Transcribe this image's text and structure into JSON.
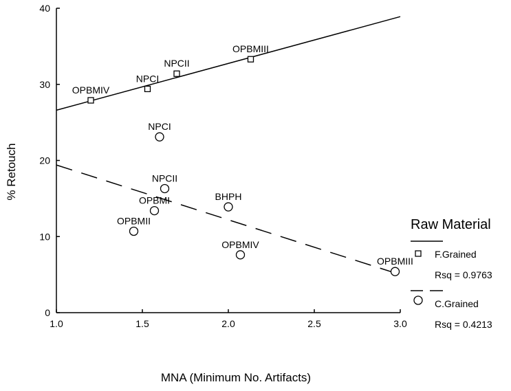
{
  "chart_data": {
    "type": "scatter",
    "xlabel": "MNA (Minimum No. Artifacts)",
    "ylabel": "% Retouch",
    "xlim": [
      1.0,
      3.0
    ],
    "ylim": [
      0,
      40
    ],
    "x_ticks": [
      1.0,
      1.5,
      2.0,
      2.5,
      3.0
    ],
    "x_tick_labels": [
      "1.0",
      "1.5",
      "2.0",
      "2.5",
      "3.0"
    ],
    "y_ticks": [
      0,
      10,
      20,
      30,
      40
    ],
    "y_tick_labels": [
      "0",
      "10",
      "20",
      "30",
      "40"
    ],
    "grid": false,
    "legend_title": "Raw Material",
    "legend_position": "right",
    "series": [
      {
        "name": "F.Grained",
        "marker": "square",
        "rsq_label": "Rsq = 0.9763",
        "fit_line": "solid",
        "fit": {
          "x": [
            1.0,
            3.0
          ],
          "y": [
            26.6,
            38.9
          ]
        },
        "points": [
          {
            "label": "OPBMIV",
            "x": 1.2,
            "y": 27.9
          },
          {
            "label": "NPCI",
            "x": 1.53,
            "y": 29.4
          },
          {
            "label": "NPCII",
            "x": 1.7,
            "y": 31.4
          },
          {
            "label": "OPBMIII",
            "x": 2.13,
            "y": 33.3
          }
        ]
      },
      {
        "name": "C.Grained",
        "marker": "circle",
        "rsq_label": "Rsq = 0.4213",
        "fit_line": "dashed",
        "fit": {
          "x": [
            1.0,
            3.0
          ],
          "y": [
            19.4,
            5.0
          ]
        },
        "points": [
          {
            "label": "NPCI",
            "x": 1.6,
            "y": 23.1
          },
          {
            "label": "NPCII",
            "x": 1.63,
            "y": 16.3
          },
          {
            "label": "OPBMI",
            "x": 1.57,
            "y": 13.4
          },
          {
            "label": "BHPH",
            "x": 2.0,
            "y": 13.9
          },
          {
            "label": "OPBMII",
            "x": 1.45,
            "y": 10.7
          },
          {
            "label": "OPBMIV",
            "x": 2.07,
            "y": 7.6
          },
          {
            "label": "OPBMIII",
            "x": 2.97,
            "y": 5.4
          }
        ]
      }
    ]
  }
}
